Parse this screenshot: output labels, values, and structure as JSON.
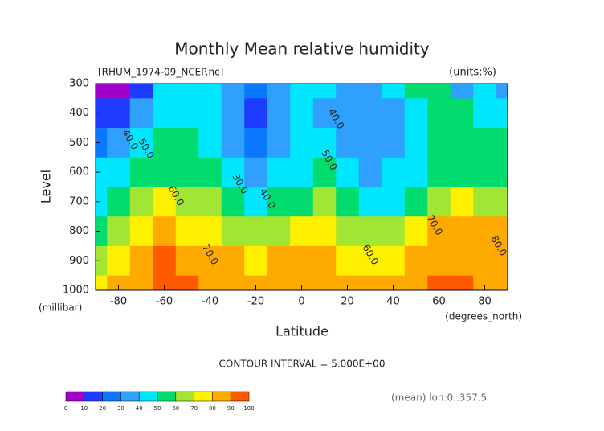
{
  "chart_data": {
    "type": "contour",
    "title": "Monthly Mean relative humidity",
    "subtitle": "[RHUM_1974-09_NCEP.nc]",
    "units": "(units:%)",
    "y_label": "Level",
    "y_unit": "(millibar)",
    "x_label": "Latitude",
    "x_unit": "(degrees_north)",
    "footer": "CONTOUR INTERVAL = 5.000E+00",
    "note": "(mean) lon:0..357.5",
    "xlim": [
      -90,
      90
    ],
    "ylim": [
      1000,
      300
    ],
    "xticks": [
      -80,
      -60,
      -40,
      -20,
      0,
      20,
      40,
      60,
      80
    ],
    "yticks": [
      300,
      400,
      500,
      600,
      700,
      800,
      900,
      1000
    ],
    "x": [
      -90,
      -80,
      -70,
      -60,
      -50,
      -40,
      -30,
      -20,
      -10,
      0,
      10,
      20,
      30,
      40,
      50,
      60,
      70,
      80,
      90
    ],
    "y": [
      300,
      400,
      500,
      600,
      700,
      800,
      900,
      1000
    ],
    "z": [
      [
        5,
        8,
        15,
        45,
        45,
        45,
        35,
        25,
        35,
        42,
        45,
        35,
        35,
        42,
        55,
        55,
        35,
        45,
        35
      ],
      [
        15,
        18,
        35,
        45,
        47,
        42,
        32,
        18,
        32,
        45,
        38,
        32,
        32,
        35,
        48,
        55,
        52,
        48,
        45
      ],
      [
        25,
        30,
        42,
        52,
        55,
        48,
        35,
        25,
        35,
        45,
        48,
        35,
        32,
        35,
        48,
        55,
        58,
        55,
        52
      ],
      [
        40,
        42,
        55,
        58,
        57,
        52,
        42,
        32,
        40,
        48,
        52,
        45,
        38,
        40,
        48,
        55,
        58,
        58,
        56
      ],
      [
        40,
        55,
        62,
        70,
        67,
        62,
        53,
        42,
        52,
        58,
        62,
        55,
        48,
        48,
        56,
        68,
        72,
        68,
        65
      ],
      [
        55,
        65,
        75,
        82,
        78,
        75,
        68,
        63,
        65,
        72,
        72,
        67,
        62,
        64,
        72,
        80,
        80,
        82,
        82
      ],
      [
        65,
        75,
        85,
        90,
        88,
        82,
        80,
        75,
        80,
        83,
        82,
        76,
        73,
        75,
        80,
        86,
        85,
        87,
        88
      ],
      [
        70,
        80,
        88,
        92,
        90,
        86,
        84,
        82,
        83,
        84,
        84,
        80,
        80,
        82,
        85,
        90,
        91,
        88,
        88
      ]
    ],
    "contour_labels": [
      {
        "value": 40,
        "label": "40.0",
        "x": -75,
        "y": 490
      },
      {
        "value": 50,
        "label": "50.0",
        "x": -68,
        "y": 520
      },
      {
        "value": 60,
        "label": "60.0",
        "x": -55,
        "y": 680
      },
      {
        "value": 70,
        "label": "70.0",
        "x": -40,
        "y": 880
      },
      {
        "value": 30,
        "label": "30.0",
        "x": -27,
        "y": 640
      },
      {
        "value": 40,
        "label": "40.0",
        "x": -15,
        "y": 690
      },
      {
        "value": 40,
        "label": "40.0",
        "x": 15,
        "y": 420
      },
      {
        "value": 50,
        "label": "50.0",
        "x": 12,
        "y": 560
      },
      {
        "value": 60,
        "label": "60.0",
        "x": 30,
        "y": 880
      },
      {
        "value": 70,
        "label": "70.0",
        "x": 58,
        "y": 780
      },
      {
        "value": 80,
        "label": "80.0",
        "x": 86,
        "y": 850
      }
    ],
    "levels": [
      0,
      10,
      20,
      30,
      40,
      50,
      60,
      70,
      80,
      90,
      100
    ],
    "colors": [
      "#a000c8",
      "#1e3cff",
      "#0a78ff",
      "#30a0ff",
      "#00e6ff",
      "#00dc6e",
      "#a0e632",
      "#fff000",
      "#ffaa00",
      "#ff5a00"
    ]
  }
}
